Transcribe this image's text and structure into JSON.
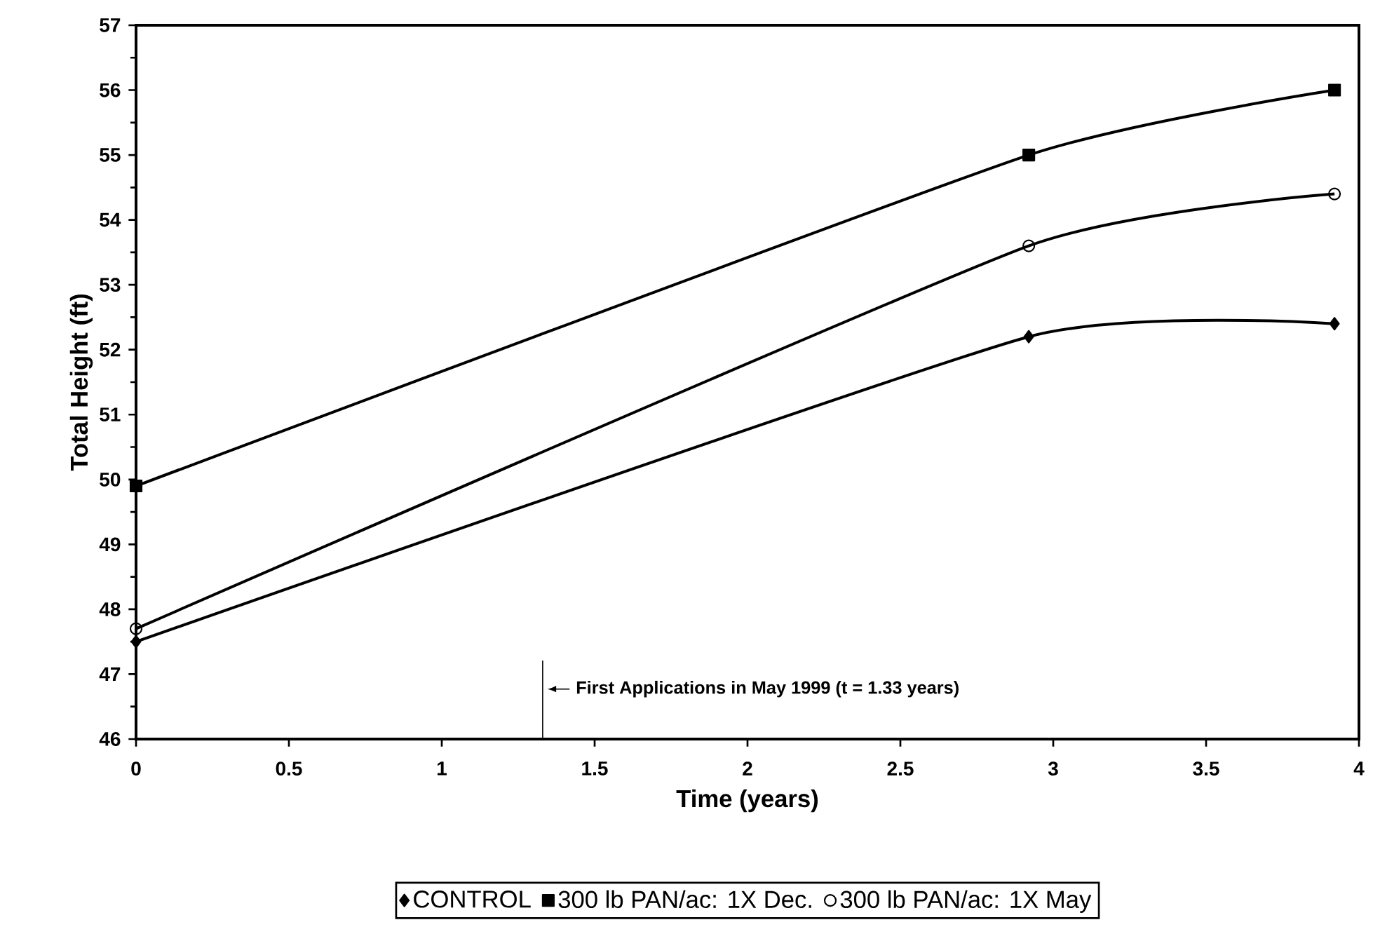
{
  "chart_data": {
    "type": "line",
    "xlabel": "Time (years)",
    "ylabel": "Total Height (ft)",
    "x": [
      0,
      2.92,
      3.92
    ],
    "series": [
      {
        "name": "CONTROL",
        "color": "#000000",
        "marker": "diamond",
        "values": [
          47.5,
          52.2,
          52.4
        ]
      },
      {
        "name": "300 lb PAN/ac: 1X Dec.",
        "color": "#000000",
        "marker": "square",
        "values": [
          49.9,
          55.0,
          56.0
        ]
      },
      {
        "name": "300 lb PAN/ac: 1X May",
        "color": "#000000",
        "marker": "circle",
        "values": [
          47.7,
          53.6,
          54.4
        ]
      }
    ],
    "xlim": [
      0,
      4
    ],
    "xticks": [
      0,
      0.5,
      1,
      1.5,
      2,
      2.5,
      3,
      3.5,
      4
    ],
    "ylim": [
      46,
      57
    ],
    "yticks": [
      46,
      47,
      48,
      49,
      50,
      51,
      52,
      53,
      54,
      55,
      56,
      57
    ],
    "ref_lines": [
      {
        "axis": "x",
        "value": 1.33,
        "label": "First Applications in May 1999 (t = 1.33 years)"
      }
    ],
    "legend": "bottom",
    "grid": false,
    "line_style": "solid"
  }
}
